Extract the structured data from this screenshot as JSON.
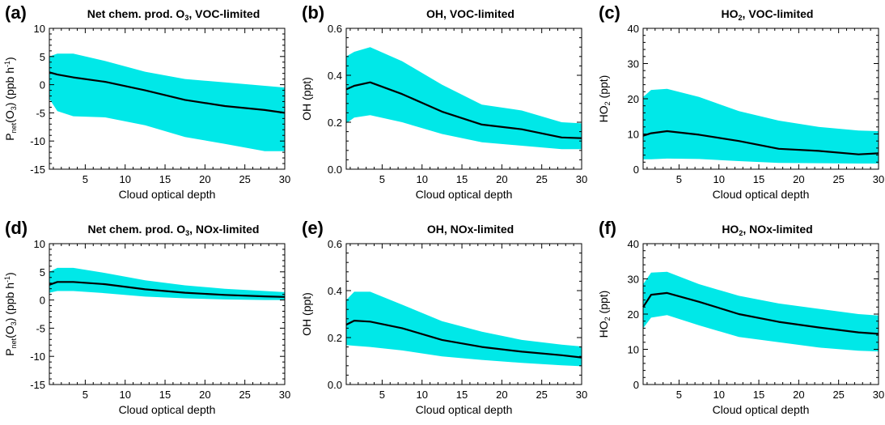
{
  "chart_data": [
    {
      "type": "area",
      "panel": "(a)",
      "title": "Net chem. prod. O3, VOC-limited",
      "title_parts": {
        "pre": "Net chem. prod. O",
        "sub": "3",
        "post": ", VOC-limited"
      },
      "xlabel": "Cloud optical depth",
      "ylabel": "Pnet(O3) (ppb h-1)",
      "ylabel_parts": {
        "kind": "pnet"
      },
      "xlim": [
        0.5,
        30
      ],
      "ylim": [
        -15,
        10
      ],
      "xticks": [
        5,
        10,
        15,
        20,
        25,
        30
      ],
      "yticks": [
        -15,
        -10,
        -5,
        0,
        5,
        10
      ],
      "ytick_labels": [
        "-15",
        "-10",
        "-5",
        "0",
        "5",
        "10"
      ],
      "x": [
        0.5,
        1.5,
        3.5,
        7.5,
        12.5,
        17.5,
        22.5,
        27.5,
        30
      ],
      "series": [
        {
          "name": "mean",
          "values": [
            2.2,
            1.8,
            1.3,
            0.5,
            -1.0,
            -2.7,
            -3.8,
            -4.5,
            -5.0
          ]
        },
        {
          "name": "upper",
          "values": [
            5.0,
            5.5,
            5.5,
            4.2,
            2.3,
            1.0,
            0.4,
            -0.2,
            -0.5
          ]
        },
        {
          "name": "lower",
          "values": [
            -2.5,
            -4.7,
            -5.6,
            -5.8,
            -7.2,
            -9.3,
            -10.5,
            -11.8,
            -11.8
          ]
        }
      ]
    },
    {
      "type": "area",
      "panel": "(b)",
      "title": "OH, VOC-limited",
      "title_parts": {
        "pre": "OH, VOC-limited",
        "sub": "",
        "post": ""
      },
      "xlabel": "Cloud optical depth",
      "ylabel": "OH (ppt)",
      "ylabel_parts": {
        "kind": "plain"
      },
      "xlim": [
        0.5,
        30
      ],
      "ylim": [
        0,
        0.6
      ],
      "xticks": [
        5,
        10,
        15,
        20,
        25,
        30
      ],
      "yticks": [
        0,
        0.2,
        0.4,
        0.6
      ],
      "ytick_labels": [
        "0.0",
        "0.2",
        "0.4",
        "0.6"
      ],
      "x": [
        0.5,
        1.5,
        3.5,
        7.5,
        12.5,
        17.5,
        22.5,
        27.5,
        30
      ],
      "series": [
        {
          "name": "mean",
          "values": [
            0.34,
            0.355,
            0.37,
            0.32,
            0.245,
            0.19,
            0.17,
            0.135,
            0.132
          ]
        },
        {
          "name": "upper",
          "values": [
            0.48,
            0.5,
            0.52,
            0.46,
            0.36,
            0.275,
            0.25,
            0.2,
            0.195
          ]
        },
        {
          "name": "lower",
          "values": [
            0.195,
            0.22,
            0.23,
            0.2,
            0.15,
            0.115,
            0.1,
            0.085,
            0.085
          ]
        }
      ]
    },
    {
      "type": "area",
      "panel": "(c)",
      "title": "HO2, VOC-limited",
      "title_parts": {
        "pre": "HO",
        "sub": "2",
        "post": ", VOC-limited"
      },
      "xlabel": "Cloud optical depth",
      "ylabel": "HO2 (ppt)",
      "ylabel_parts": {
        "kind": "ho2"
      },
      "xlim": [
        0.5,
        30
      ],
      "ylim": [
        0,
        40
      ],
      "xticks": [
        5,
        10,
        15,
        20,
        25,
        30
      ],
      "yticks": [
        0,
        10,
        20,
        30,
        40
      ],
      "ytick_labels": [
        "0",
        "10",
        "20",
        "30",
        "40"
      ],
      "x": [
        0.5,
        1.5,
        3.5,
        7.5,
        12.5,
        17.5,
        22.5,
        27.5,
        30
      ],
      "series": [
        {
          "name": "mean",
          "values": [
            9.5,
            10.2,
            10.8,
            9.8,
            8.0,
            5.8,
            5.2,
            4.2,
            4.5
          ]
        },
        {
          "name": "upper",
          "values": [
            20.5,
            22.5,
            22.8,
            20.5,
            16.5,
            13.8,
            12.0,
            11.0,
            10.8
          ]
        },
        {
          "name": "lower",
          "values": [
            2.8,
            2.8,
            3.0,
            2.9,
            2.3,
            1.8,
            1.7,
            1.6,
            1.6
          ]
        }
      ]
    },
    {
      "type": "area",
      "panel": "(d)",
      "title": "Net chem. prod. O3, NOx-limited",
      "title_parts": {
        "pre": "Net chem. prod. O",
        "sub": "3",
        "post": ", NOx-limited"
      },
      "xlabel": "Cloud optical depth",
      "ylabel": "Pnet(O3) (ppb h-1)",
      "ylabel_parts": {
        "kind": "pnet"
      },
      "xlim": [
        0.5,
        30
      ],
      "ylim": [
        -15,
        10
      ],
      "xticks": [
        5,
        10,
        15,
        20,
        25,
        30
      ],
      "yticks": [
        -15,
        -10,
        -5,
        0,
        5,
        10
      ],
      "ytick_labels": [
        "-15",
        "-10",
        "-5",
        "0",
        "5",
        "10"
      ],
      "x": [
        0.5,
        1.5,
        3.5,
        7.5,
        12.5,
        17.5,
        22.5,
        27.5,
        30
      ],
      "series": [
        {
          "name": "mean",
          "values": [
            2.7,
            3.2,
            3.2,
            2.8,
            1.9,
            1.3,
            0.9,
            0.65,
            0.55
          ]
        },
        {
          "name": "upper",
          "values": [
            5.0,
            5.7,
            5.7,
            4.8,
            3.5,
            2.6,
            2.0,
            1.6,
            1.4
          ]
        },
        {
          "name": "lower",
          "values": [
            1.3,
            1.6,
            1.6,
            1.2,
            0.6,
            0.3,
            0.1,
            0.0,
            0.0
          ]
        }
      ]
    },
    {
      "type": "area",
      "panel": "(e)",
      "title": "OH, NOx-limited",
      "title_parts": {
        "pre": "OH, NOx-limited",
        "sub": "",
        "post": ""
      },
      "xlabel": "Cloud optical depth",
      "ylabel": "OH (ppt)",
      "ylabel_parts": {
        "kind": "plain"
      },
      "xlim": [
        0.5,
        30
      ],
      "ylim": [
        0,
        0.6
      ],
      "xticks": [
        5,
        10,
        15,
        20,
        25,
        30
      ],
      "yticks": [
        0,
        0.2,
        0.4,
        0.6
      ],
      "ytick_labels": [
        "0.0",
        "0.2",
        "0.4",
        "0.6"
      ],
      "x": [
        0.5,
        1.5,
        3.5,
        7.5,
        12.5,
        17.5,
        22.5,
        27.5,
        30
      ],
      "series": [
        {
          "name": "mean",
          "values": [
            0.255,
            0.272,
            0.268,
            0.24,
            0.19,
            0.16,
            0.14,
            0.125,
            0.115
          ]
        },
        {
          "name": "upper",
          "values": [
            0.36,
            0.395,
            0.395,
            0.34,
            0.27,
            0.225,
            0.19,
            0.17,
            0.162
          ]
        },
        {
          "name": "lower",
          "values": [
            0.168,
            0.165,
            0.16,
            0.145,
            0.12,
            0.105,
            0.092,
            0.082,
            0.078
          ]
        }
      ]
    },
    {
      "type": "area",
      "panel": "(f)",
      "title": "HO2, NOx-limited",
      "title_parts": {
        "pre": "HO",
        "sub": "2",
        "post": ", NOx-limited"
      },
      "xlabel": "Cloud optical depth",
      "ylabel": "HO2 (ppt)",
      "ylabel_parts": {
        "kind": "ho2"
      },
      "xlim": [
        0.5,
        30
      ],
      "ylim": [
        0,
        40
      ],
      "xticks": [
        5,
        10,
        15,
        20,
        25,
        30
      ],
      "yticks": [
        0,
        10,
        20,
        30,
        40
      ],
      "ytick_labels": [
        "0",
        "10",
        "20",
        "30",
        "40"
      ],
      "x": [
        0.5,
        1.5,
        3.5,
        7.5,
        12.5,
        17.5,
        22.5,
        27.5,
        30
      ],
      "series": [
        {
          "name": "mean",
          "values": [
            22.0,
            25.5,
            26.0,
            23.5,
            20.0,
            17.8,
            16.2,
            14.8,
            14.4
          ]
        },
        {
          "name": "upper",
          "values": [
            28.5,
            31.8,
            32.0,
            28.5,
            25.2,
            23.0,
            21.5,
            20.0,
            19.6
          ]
        },
        {
          "name": "lower",
          "values": [
            16.0,
            19.0,
            19.7,
            16.8,
            13.5,
            12.0,
            10.5,
            9.6,
            9.4
          ]
        }
      ]
    }
  ],
  "colors": {
    "band": "#00e8e8",
    "line": "#000000"
  }
}
